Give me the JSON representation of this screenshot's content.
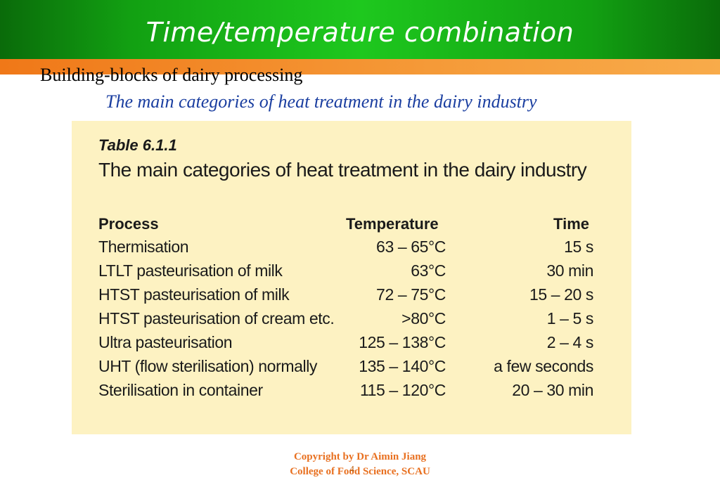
{
  "slide": {
    "title": "Time/temperature combination",
    "subtitle": "Building-blocks of dairy processing",
    "caption": "The main categories of heat treatment in the dairy industry"
  },
  "table": {
    "label": "Table  6.1.1",
    "title": "The main categories of heat treatment in the dairy industry",
    "headers": {
      "process": "Process",
      "temperature": "Temperature",
      "time": "Time"
    },
    "rows": [
      {
        "process": "Thermisation",
        "temperature": "63 – 65°C",
        "time": "15 s"
      },
      {
        "process": "LTLT pasteurisation of milk",
        "temperature": "63°C",
        "time": "30 min"
      },
      {
        "process": "HTST pasteurisation of milk",
        "temperature": "72 – 75°C",
        "time": "15 – 20 s"
      },
      {
        "process": "HTST pasteurisation of cream etc.",
        "temperature": ">80°C",
        "time": "1 – 5 s"
      },
      {
        "process": "Ultra pasteurisation",
        "temperature": "125 – 138°C",
        "time": "2 – 4 s"
      },
      {
        "process": "UHT (flow sterilisation) normally",
        "temperature": "135 – 140°C",
        "time": "a few seconds"
      },
      {
        "process": "Sterilisation in container",
        "temperature": "115 – 120°C",
        "time": "20 – 30 min"
      }
    ]
  },
  "footer": {
    "line1": "Copyright by Dr Aimin Jiang",
    "line2": "College of Food Science, SCAU",
    "page_number": "4"
  },
  "colors": {
    "header_green": "#1ec81e",
    "band_orange": "#f59a38",
    "caption_blue": "#1a3ea0",
    "table_bg": "#fdf2c2",
    "footer_orange": "#e87020"
  }
}
